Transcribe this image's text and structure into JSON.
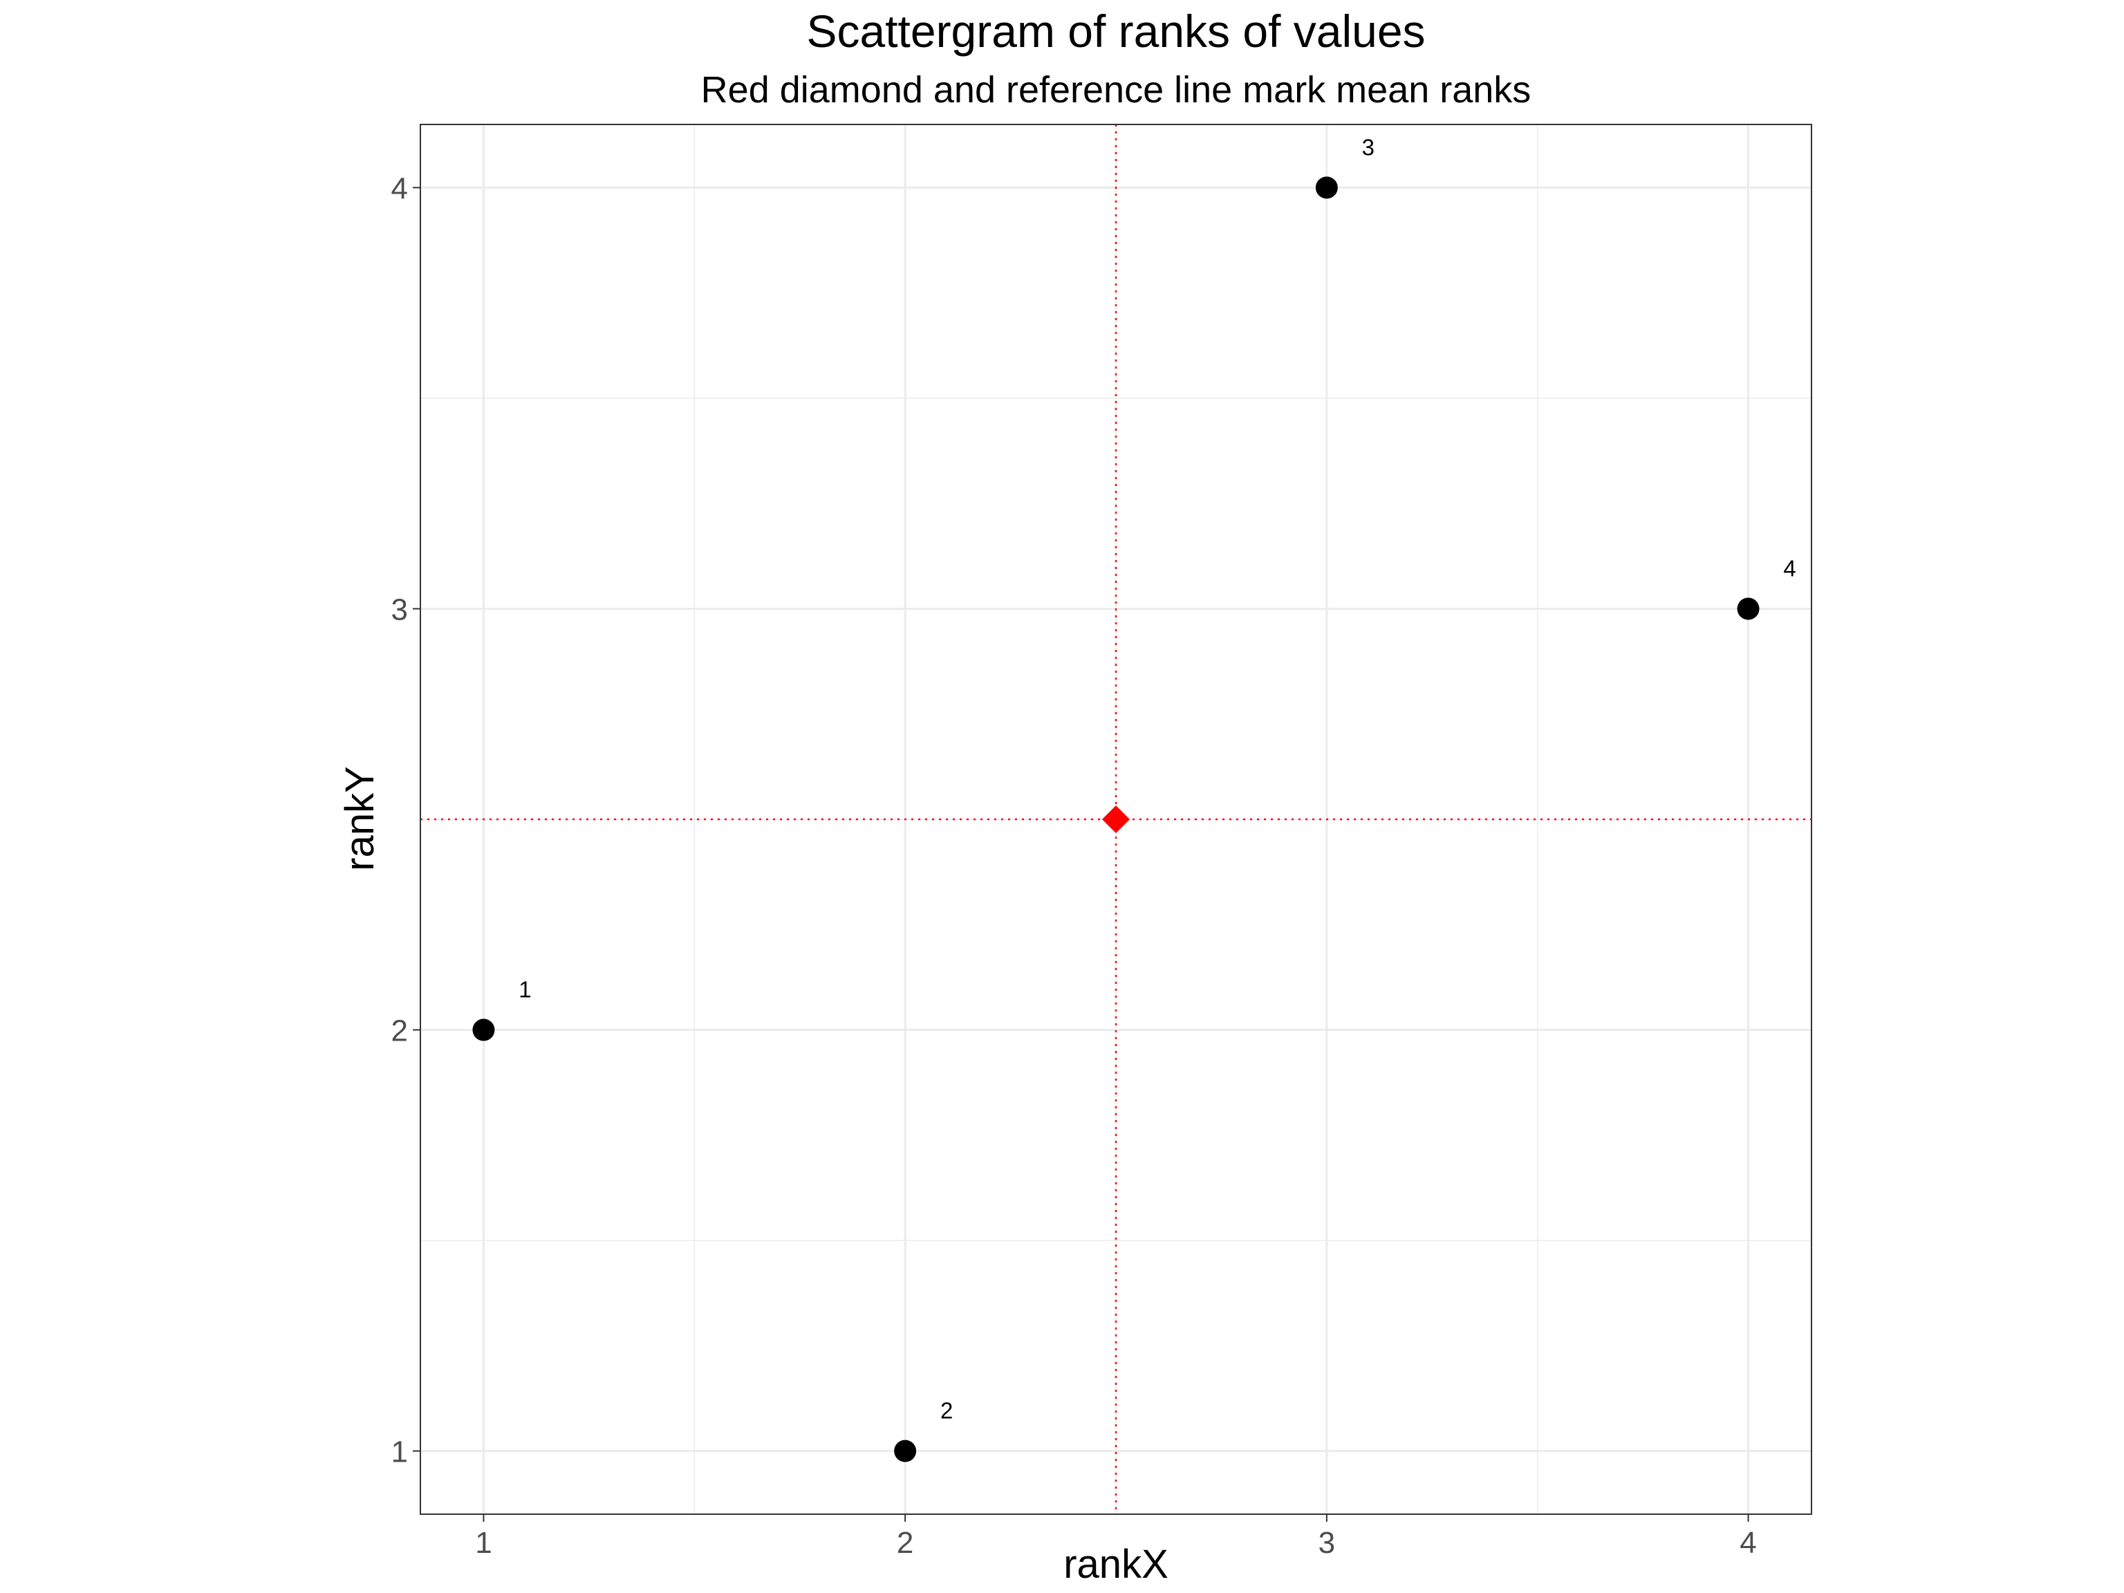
{
  "chart_data": {
    "type": "scatter",
    "title": "Scattergram of ranks of values",
    "subtitle": "Red diamond and reference line mark mean ranks",
    "xlabel": "rankX",
    "ylabel": "rankY",
    "xlim": [
      0.85,
      4.15
    ],
    "ylim": [
      0.85,
      4.15
    ],
    "x_ticks": [
      1,
      2,
      3,
      4
    ],
    "y_ticks": [
      1,
      2,
      3,
      4
    ],
    "x_tick_labels": [
      "1",
      "2",
      "3",
      "4"
    ],
    "y_tick_labels": [
      "1",
      "2",
      "3",
      "4"
    ],
    "grid": true,
    "points": [
      {
        "label": "1",
        "x": 1,
        "y": 2
      },
      {
        "label": "2",
        "x": 2,
        "y": 1
      },
      {
        "label": "3",
        "x": 3,
        "y": 4
      },
      {
        "label": "4",
        "x": 4,
        "y": 3
      }
    ],
    "mean": {
      "x": 2.5,
      "y": 2.5
    },
    "colors": {
      "points": "#000000",
      "mean_marker": "#ff0000",
      "reference_lines": "#ff0000",
      "grid": "#ebebeb",
      "panel_border": "#333333"
    }
  }
}
